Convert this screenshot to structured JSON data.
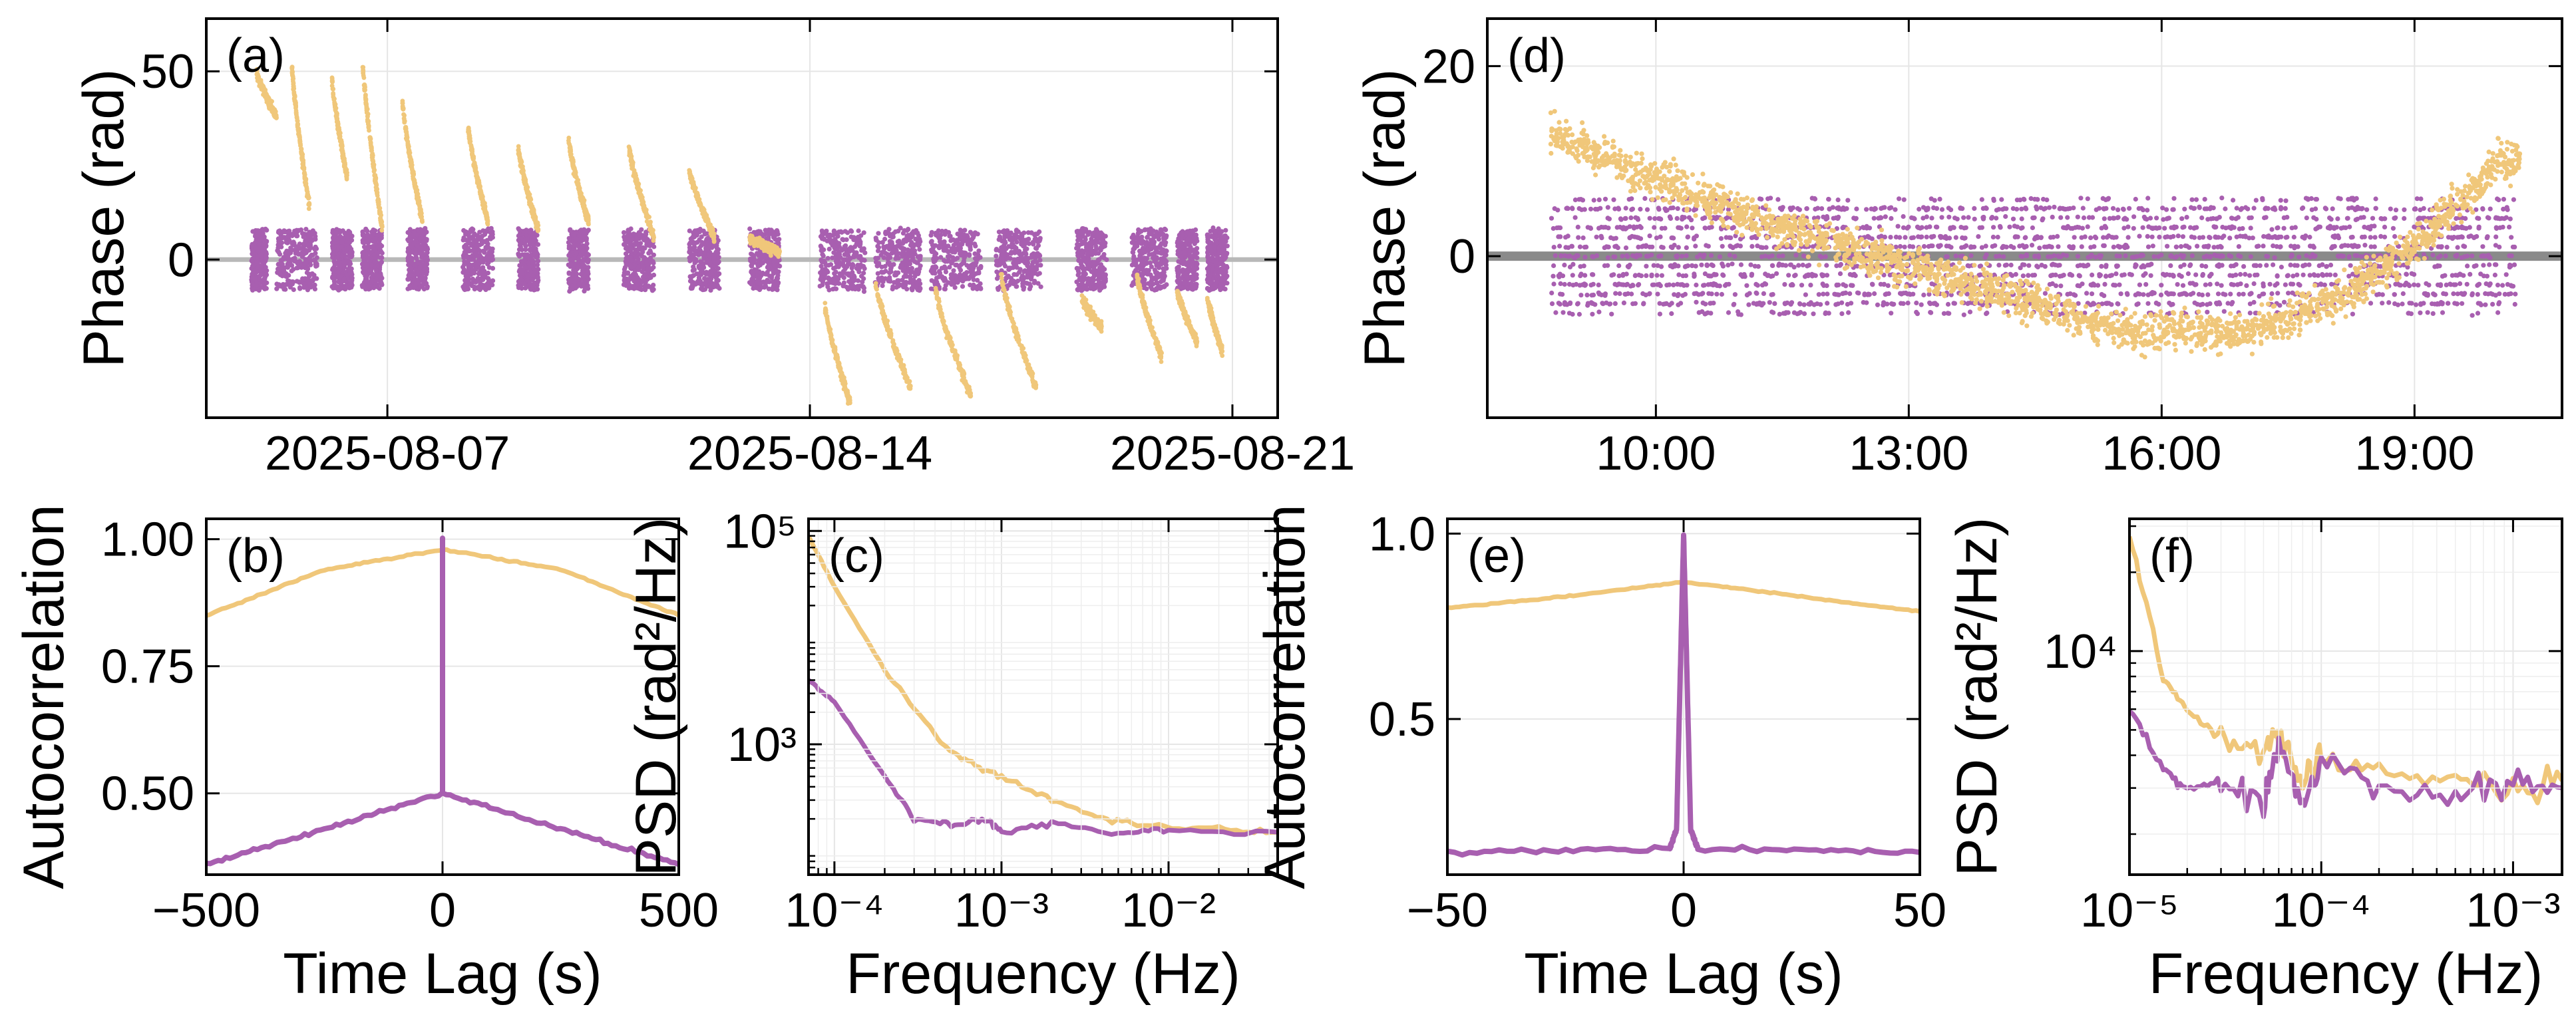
{
  "colors": {
    "orange": "#f0c77a",
    "purple": "#a85fb0",
    "zero_line": "#b8b8b8",
    "grid": "#e6e6e6"
  },
  "chart_data": [
    {
      "id": "a",
      "type": "scatter",
      "panel_label": "(a)",
      "xlabel": "",
      "ylabel": "Phase (rad)",
      "x_tick_labels": [
        "2025-08-07",
        "2025-08-14",
        "2025-08-21"
      ],
      "y_tick_labels": [
        "0",
        "50"
      ],
      "xlim": [
        "2025-08-04T00:00",
        "2025-08-21T18:00"
      ],
      "ylim": [
        -42,
        64
      ],
      "x_ticks": [
        "2025-08-07",
        "2025-08-14",
        "2025-08-21"
      ],
      "y_ticks": [
        0,
        50
      ],
      "zero_line": 0,
      "grid": true,
      "orange_segments": [
        [
          "2025-08-04T20:00",
          50,
          "2025-08-05T04:00",
          38
        ],
        [
          "2025-08-05T10:00",
          52,
          "2025-08-05T17:00",
          14
        ],
        [
          "2025-08-06T02:00",
          48,
          "2025-08-06T08:00",
          22
        ],
        [
          "2025-08-06T14:00",
          54,
          "2025-08-06T22:00",
          8
        ],
        [
          "2025-08-07T06:00",
          42,
          "2025-08-07T14:00",
          10
        ],
        [
          "2025-08-08T08:00",
          36,
          "2025-08-08T16:00",
          10
        ],
        [
          "2025-08-09T04:00",
          30,
          "2025-08-09T12:00",
          8
        ],
        [
          "2025-08-10T00:00",
          32,
          "2025-08-10T08:00",
          10
        ],
        [
          "2025-08-11T00:00",
          30,
          "2025-08-11T10:00",
          6
        ],
        [
          "2025-08-12T00:00",
          24,
          "2025-08-12T10:00",
          6
        ],
        [
          "2025-08-13T00:00",
          6,
          "2025-08-13T12:00",
          2
        ],
        [
          "2025-08-14T06:00",
          -12,
          "2025-08-14T16:00",
          -38
        ],
        [
          "2025-08-15T02:00",
          -6,
          "2025-08-15T16:00",
          -34
        ],
        [
          "2025-08-16T02:00",
          -8,
          "2025-08-16T16:00",
          -36
        ],
        [
          "2025-08-17T04:00",
          -4,
          "2025-08-17T18:00",
          -34
        ],
        [
          "2025-08-18T12:00",
          -10,
          "2025-08-18T20:00",
          -18
        ],
        [
          "2025-08-19T10:00",
          -4,
          "2025-08-19T20:00",
          -26
        ],
        [
          "2025-08-20T02:00",
          -8,
          "2025-08-20T10:00",
          -22
        ],
        [
          "2025-08-20T14:00",
          -10,
          "2025-08-20T20:00",
          -24
        ]
      ],
      "purple_ranges": [
        [
          "2025-08-04T18:00",
          "2025-08-05T00:00"
        ],
        [
          "2025-08-05T04:00",
          "2025-08-05T20:00"
        ],
        [
          "2025-08-06T02:00",
          "2025-08-06T10:00"
        ],
        [
          "2025-08-06T14:00",
          "2025-08-06T22:00"
        ],
        [
          "2025-08-07T08:00",
          "2025-08-07T16:00"
        ],
        [
          "2025-08-08T06:00",
          "2025-08-08T18:00"
        ],
        [
          "2025-08-09T04:00",
          "2025-08-09T12:00"
        ],
        [
          "2025-08-10T00:00",
          "2025-08-10T08:00"
        ],
        [
          "2025-08-10T22:00",
          "2025-08-11T10:00"
        ],
        [
          "2025-08-12T00:00",
          "2025-08-12T12:00"
        ],
        [
          "2025-08-13T00:00",
          "2025-08-13T12:00"
        ],
        [
          "2025-08-14T04:00",
          "2025-08-14T22:00"
        ],
        [
          "2025-08-15T02:00",
          "2025-08-15T20:00"
        ],
        [
          "2025-08-16T00:00",
          "2025-08-16T20:00"
        ],
        [
          "2025-08-17T02:00",
          "2025-08-17T20:00"
        ],
        [
          "2025-08-18T10:00",
          "2025-08-18T22:00"
        ],
        [
          "2025-08-19T08:00",
          "2025-08-19T22:00"
        ],
        [
          "2025-08-20T02:00",
          "2025-08-20T10:00"
        ],
        [
          "2025-08-20T14:00",
          "2025-08-20T22:00"
        ]
      ]
    },
    {
      "id": "d",
      "type": "scatter",
      "panel_label": "(d)",
      "xlabel": "",
      "ylabel": "Phase (rad)",
      "x_tick_labels": [
        "10:00",
        "13:00",
        "16:00",
        "19:00"
      ],
      "y_tick_labels": [
        "0",
        "20"
      ],
      "xlim": [
        "08:00",
        "20:45"
      ],
      "ylim": [
        -17,
        25
      ],
      "x_ticks": [
        "10:00",
        "13:00",
        "16:00",
        "19:00"
      ],
      "y_ticks": [
        0,
        20
      ],
      "zero_line": 0,
      "grid": true,
      "orange_trend": [
        [
          "08:45",
          13
        ],
        [
          "10:00",
          8
        ],
        [
          "11:30",
          3
        ],
        [
          "13:00",
          -1
        ],
        [
          "14:30",
          -5
        ],
        [
          "15:30",
          -8
        ],
        [
          "17:00",
          -8
        ],
        [
          "18:00",
          -5
        ],
        [
          "19:00",
          1
        ],
        [
          "20:00",
          10
        ]
      ],
      "purple_band": [
        -7,
        7
      ],
      "x_range": [
        "08:45",
        "20:15"
      ]
    },
    {
      "id": "b",
      "type": "line",
      "panel_label": "(b)",
      "xlabel": "Time Lag (s)",
      "ylabel": "Autocorrelation",
      "x_tick_labels": [
        "−500",
        "0",
        "500"
      ],
      "y_tick_labels": [
        "0.50",
        "0.75",
        "1.00"
      ],
      "xlim": [
        -500,
        500
      ],
      "ylim": [
        0.34,
        1.04
      ],
      "x_ticks": [
        -500,
        0,
        500
      ],
      "y_ticks": [
        0.5,
        0.75,
        1.0
      ],
      "grid": true,
      "series": [
        {
          "color": "orange",
          "x": [
            -500,
            -250,
            0,
            250,
            500
          ],
          "y": [
            0.85,
            0.94,
            0.98,
            0.94,
            0.85
          ]
        },
        {
          "color": "purple",
          "x": [
            -500,
            -250,
            0,
            0,
            0,
            250,
            500
          ],
          "y": [
            0.36,
            0.43,
            0.5,
            1.0,
            0.5,
            0.43,
            0.36
          ]
        }
      ]
    },
    {
      "id": "c",
      "type": "line",
      "panel_label": "(c)",
      "log": true,
      "xlabel": "Frequency (Hz)",
      "ylabel": "PSD (rad²/Hz)",
      "x_tick_labels": [
        "10⁻⁴",
        "10⁻³",
        "10⁻²"
      ],
      "y_tick_labels": [
        "10³",
        "10⁵"
      ],
      "xlim": [
        7e-05,
        0.045
      ],
      "ylim": [
        60,
        130000
      ],
      "x_ticks": [
        0.0001,
        0.001,
        0.01
      ],
      "y_ticks": [
        1000,
        100000
      ],
      "grid": true,
      "series": [
        {
          "color": "orange",
          "x": [
            7e-05,
            0.0001,
            0.0002,
            0.0004,
            0.0006,
            0.001,
            0.002,
            0.004,
            0.008,
            0.02,
            0.045
          ],
          "y": [
            90000,
            30000,
            5000,
            1200,
            700,
            500,
            300,
            200,
            170,
            160,
            150
          ]
        },
        {
          "color": "purple",
          "x": [
            7e-05,
            0.0001,
            0.0002,
            0.0003,
            0.0005,
            0.0008,
            0.001,
            0.002,
            0.005,
            0.01,
            0.045
          ],
          "y": [
            4000,
            2500,
            500,
            200,
            180,
            200,
            150,
            180,
            150,
            160,
            150
          ]
        }
      ]
    },
    {
      "id": "e",
      "type": "line",
      "panel_label": "(e)",
      "xlabel": "Time Lag (s)",
      "ylabel": "Autocorrelation",
      "x_tick_labels": [
        "−50",
        "0",
        "50"
      ],
      "y_tick_labels": [
        "0.5",
        "1.0"
      ],
      "xlim": [
        -50,
        50
      ],
      "ylim": [
        0.08,
        1.04
      ],
      "x_ticks": [
        -50,
        0,
        50
      ],
      "y_ticks": [
        0.5,
        1.0
      ],
      "grid": true,
      "series": [
        {
          "color": "orange",
          "x": [
            -50,
            -25,
            0,
            25,
            50
          ],
          "y": [
            0.8,
            0.83,
            0.87,
            0.83,
            0.79
          ]
        },
        {
          "color": "purple",
          "x": [
            -50,
            -3,
            -1.5,
            0,
            1.5,
            3,
            50
          ],
          "y": [
            0.14,
            0.15,
            0.2,
            1.0,
            0.2,
            0.15,
            0.14
          ]
        }
      ]
    },
    {
      "id": "f",
      "type": "line",
      "panel_label": "(f)",
      "log": true,
      "xlabel": "Frequency (Hz)",
      "ylabel": "PSD (rad²/Hz)",
      "x_tick_labels": [
        "10⁻⁵",
        "10⁻⁴",
        "10⁻³"
      ],
      "y_tick_labels": [
        "10⁴"
      ],
      "xlim": [
        1e-05,
        0.0018
      ],
      "ylim": [
        1400,
        32000
      ],
      "x_ticks": [
        1e-05,
        0.0001,
        0.001
      ],
      "y_ticks": [
        10000
      ],
      "grid": true,
      "series": [
        {
          "color": "orange",
          "x": [
            1e-05,
            1.5e-05,
            2e-05,
            3e-05,
            5e-05,
            6e-05,
            8e-05,
            0.0001,
            0.0002,
            0.0005,
            0.001,
            0.0018
          ],
          "y": [
            28000,
            8000,
            6000,
            4500,
            4200,
            5000,
            3000,
            4000,
            3500,
            3200,
            3000,
            3200
          ]
        },
        {
          "color": "purple",
          "x": [
            1e-05,
            1.5e-05,
            2e-05,
            3e-05,
            5e-05,
            6e-05,
            8e-05,
            0.0001,
            0.0002,
            0.0005,
            0.001,
            0.0018
          ],
          "y": [
            6000,
            3500,
            3000,
            3200,
            2600,
            4500,
            2500,
            3800,
            3000,
            2800,
            3100,
            3000
          ]
        }
      ]
    }
  ]
}
